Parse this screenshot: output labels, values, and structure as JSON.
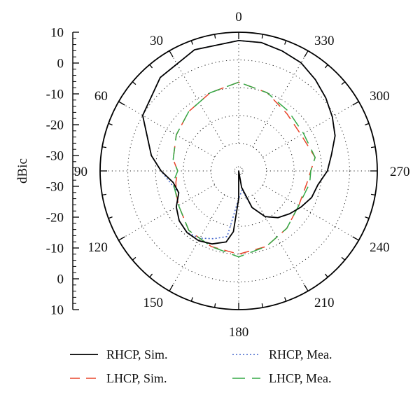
{
  "chart_data": {
    "type": "polar",
    "ylabel": "dBic",
    "r_ticks": [
      "10",
      "0",
      "-10",
      "-20",
      "-30",
      "-40"
    ],
    "r_range": [
      -40,
      10
    ],
    "r_tick_labels": [
      "10",
      "0",
      "-10",
      "-20",
      "-30",
      "-30",
      "-20",
      "-10",
      "0",
      "10"
    ],
    "angle_direction": "counterclockwise",
    "angle_labels": [
      "0",
      "30",
      "60",
      "90",
      "120",
      "150",
      "180",
      "210",
      "240",
      "270",
      "300",
      "330"
    ],
    "grid": true,
    "legend_position": "bottom",
    "series": [
      {
        "name": "RHCP, Sim.",
        "color": "#000000",
        "dash": "solid",
        "theta": [
          0,
          20,
          40,
          60,
          80,
          90,
          100,
          110,
          120,
          130,
          140,
          150,
          160,
          170,
          175,
          180,
          185,
          190,
          200,
          210,
          220,
          230,
          240,
          250,
          260,
          270,
          280,
          290,
          300,
          310,
          320,
          330,
          340,
          350,
          360
        ],
        "r": [
          7,
          6.5,
          4,
          0,
          -8,
          -12,
          -16,
          -17,
          -14,
          -12,
          -11,
          -11,
          -12,
          -14,
          -18,
          -30,
          -40,
          -34,
          -26,
          -21,
          -18,
          -16,
          -14,
          -12,
          -11,
          -8,
          -6,
          -3,
          -1,
          1,
          3,
          5,
          6,
          7,
          7
        ]
      },
      {
        "name": "LHCP, Sim.",
        "color": "#e8452b",
        "dash": "dashed",
        "theta": [
          0,
          20,
          40,
          60,
          80,
          90,
          100,
          110,
          120,
          140,
          160,
          180,
          200,
          220,
          240,
          260,
          270,
          280,
          300,
          320,
          340,
          360
        ],
        "r": [
          -8,
          -10,
          -12,
          -14,
          -16,
          -18,
          -17,
          -16,
          -15,
          -12,
          -11,
          -10,
          -11,
          -13,
          -15,
          -15,
          -14,
          -12,
          -14,
          -13,
          -10,
          -8
        ]
      },
      {
        "name": "RHCP, Mea.",
        "color": "#4466cc",
        "dash": "dotted",
        "theta": [
          0,
          20,
          40,
          60,
          80,
          90,
          100,
          110,
          120,
          130,
          140,
          150,
          160,
          170,
          180,
          190,
          200,
          210,
          220,
          230,
          240,
          250,
          260,
          270,
          280,
          290,
          300,
          310,
          320,
          330,
          340,
          350,
          360
        ],
        "r": [
          7,
          6.5,
          4,
          0,
          -8,
          -12,
          -15,
          -17,
          -14,
          -12,
          -11,
          -12,
          -14,
          -16,
          -30,
          -33,
          -26,
          -21,
          -18,
          -16,
          -14,
          -12,
          -11,
          -8,
          -6,
          -3,
          -1,
          1,
          3,
          5,
          6,
          7,
          7
        ]
      },
      {
        "name": "LHCP, Mea.",
        "color": "#33a845",
        "dash": "longdash",
        "theta": [
          0,
          20,
          40,
          60,
          80,
          90,
          100,
          120,
          140,
          160,
          180,
          200,
          220,
          240,
          260,
          270,
          280,
          300,
          320,
          340,
          360
        ],
        "r": [
          -8,
          -10,
          -12,
          -14,
          -16,
          -18,
          -16,
          -15,
          -12,
          -11,
          -9,
          -11,
          -13,
          -15,
          -14,
          -14,
          -12,
          -13,
          -12,
          -10,
          -8
        ]
      }
    ]
  }
}
